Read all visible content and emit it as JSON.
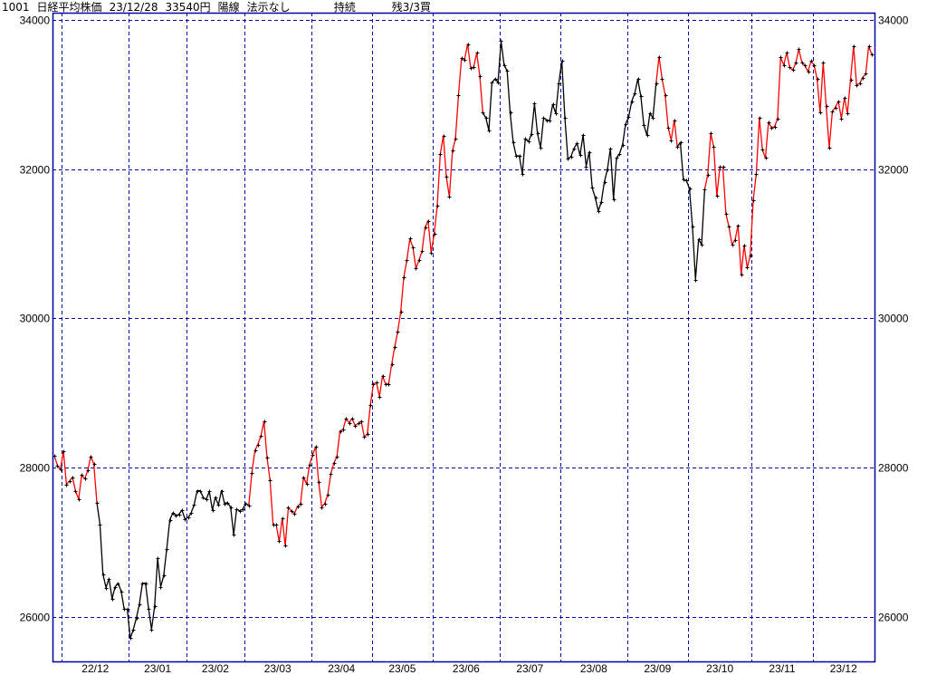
{
  "header": {
    "code": "1001",
    "name": "日経平均株価",
    "date": "23/12/28",
    "price": "33540円",
    "candle": "陽線",
    "rule": "法示なし",
    "status": "持続",
    "position": "残3/3買"
  },
  "chart_data": {
    "type": "line",
    "title": "",
    "xlabel": "",
    "ylabel": "",
    "ylim": [
      25400,
      34100
    ],
    "yticks": [
      26000,
      28000,
      30000,
      32000,
      34000
    ],
    "grid": true,
    "colors": {
      "up": "#ff0000",
      "down": "#000000",
      "grid": "#0000aa",
      "frame": "#0000aa",
      "marker": "#000000"
    },
    "x_ticks": [
      {
        "label": "22/12",
        "start_index": 3
      },
      {
        "label": "23/01",
        "start_index": 25
      },
      {
        "label": "23/02",
        "start_index": 44
      },
      {
        "label": "23/03",
        "start_index": 63
      },
      {
        "label": "23/04",
        "start_index": 85
      },
      {
        "label": "23/05",
        "start_index": 105
      },
      {
        "label": "23/06",
        "start_index": 125
      },
      {
        "label": "23/07",
        "start_index": 147
      },
      {
        "label": "23/08",
        "start_index": 167
      },
      {
        "label": "23/09",
        "start_index": 189
      },
      {
        "label": "23/10",
        "start_index": 209
      },
      {
        "label": "23/11",
        "start_index": 230
      },
      {
        "label": "23/12",
        "start_index": 250
      }
    ],
    "signal_segments": [
      {
        "from": 0,
        "to": 14,
        "color": "up"
      },
      {
        "from": 14,
        "to": 64,
        "color": "down"
      },
      {
        "from": 64,
        "to": 141,
        "color": "up"
      },
      {
        "from": 141,
        "to": 198,
        "color": "down"
      },
      {
        "from": 198,
        "to": 205,
        "color": "up"
      },
      {
        "from": 205,
        "to": 214,
        "color": "down"
      },
      {
        "from": 214,
        "to": 269,
        "color": "up"
      }
    ],
    "values": [
      28160,
      28030,
      27970,
      28220,
      27770,
      27820,
      27870,
      27680,
      27580,
      27900,
      27850,
      27960,
      28150,
      28050,
      27530,
      27240,
      26570,
      26390,
      26510,
      26240,
      26400,
      26450,
      26340,
      26100,
      26100,
      25710,
      25830,
      25980,
      26170,
      26450,
      26450,
      26110,
      25830,
      26140,
      26780,
      26400,
      26550,
      26910,
      27300,
      27390,
      27360,
      27370,
      27430,
      27310,
      27330,
      27390,
      27500,
      27690,
      27690,
      27600,
      27570,
      27680,
      27430,
      27600,
      27500,
      27690,
      27520,
      27530,
      27470,
      27100,
      27440,
      27420,
      27440,
      27520,
      27490,
      27930,
      28230,
      28310,
      28430,
      28620,
      28130,
      27830,
      27230,
      27230,
      27010,
      27320,
      26950,
      27460,
      27420,
      27380,
      27480,
      27510,
      27870,
      27780,
      28040,
      28170,
      28280,
      27800,
      27470,
      27520,
      27640,
      27920,
      28060,
      28150,
      28490,
      28510,
      28660,
      28600,
      28660,
      28560,
      28590,
      28620,
      28410,
      28450,
      28840,
      29120,
      29140,
      28950,
      29230,
      29120,
      29120,
      29380,
      29620,
      29820,
      30090,
      30550,
      30780,
      31070,
      30950,
      30670,
      30780,
      30900,
      31220,
      31310,
      30880,
      31130,
      31510,
      32200,
      32450,
      31900,
      31630,
      32250,
      32410,
      33000,
      33490,
      33470,
      33680,
      33360,
      33370,
      33560,
      33250,
      32760,
      32690,
      32520,
      33160,
      33210,
      33170,
      33720,
      33400,
      33320,
      32760,
      32360,
      32180,
      32180,
      31940,
      32410,
      32370,
      32470,
      32880,
      32480,
      32290,
      32690,
      32660,
      32650,
      32870,
      32750,
      33150,
      33450,
      32690,
      32140,
      32170,
      32280,
      32350,
      32190,
      32460,
      32040,
      32230,
      31750,
      31620,
      31440,
      31560,
      31830,
      32000,
      32280,
      31600,
      32150,
      32210,
      32330,
      32610,
      32700,
      32910,
      33020,
      33210,
      32980,
      32590,
      32460,
      32750,
      32690,
      33150,
      33510,
      33210,
      33000,
      32560,
      32390,
      32660,
      32300,
      32360,
      31860,
      31850,
      31740,
      31230,
      30520,
      31060,
      30990,
      31730,
      31920,
      32480,
      32300,
      31640,
      32030,
      32030,
      31400,
      31230,
      30990,
      31050,
      31250,
      30590,
      30980,
      30680,
      30840,
      31590,
      31940,
      32690,
      32260,
      32150,
      32630,
      32560,
      32570,
      32680,
      33500,
      33400,
      33560,
      33370,
      33330,
      33430,
      33610,
      33430,
      33390,
      33310,
      33450,
      33400,
      33210,
      32760,
      33430,
      32850,
      32290,
      32770,
      32830,
      32910,
      32680,
      32960,
      32750,
      33200,
      33650,
      33130,
      33150,
      33230,
      33280,
      33650,
      33540
    ]
  }
}
